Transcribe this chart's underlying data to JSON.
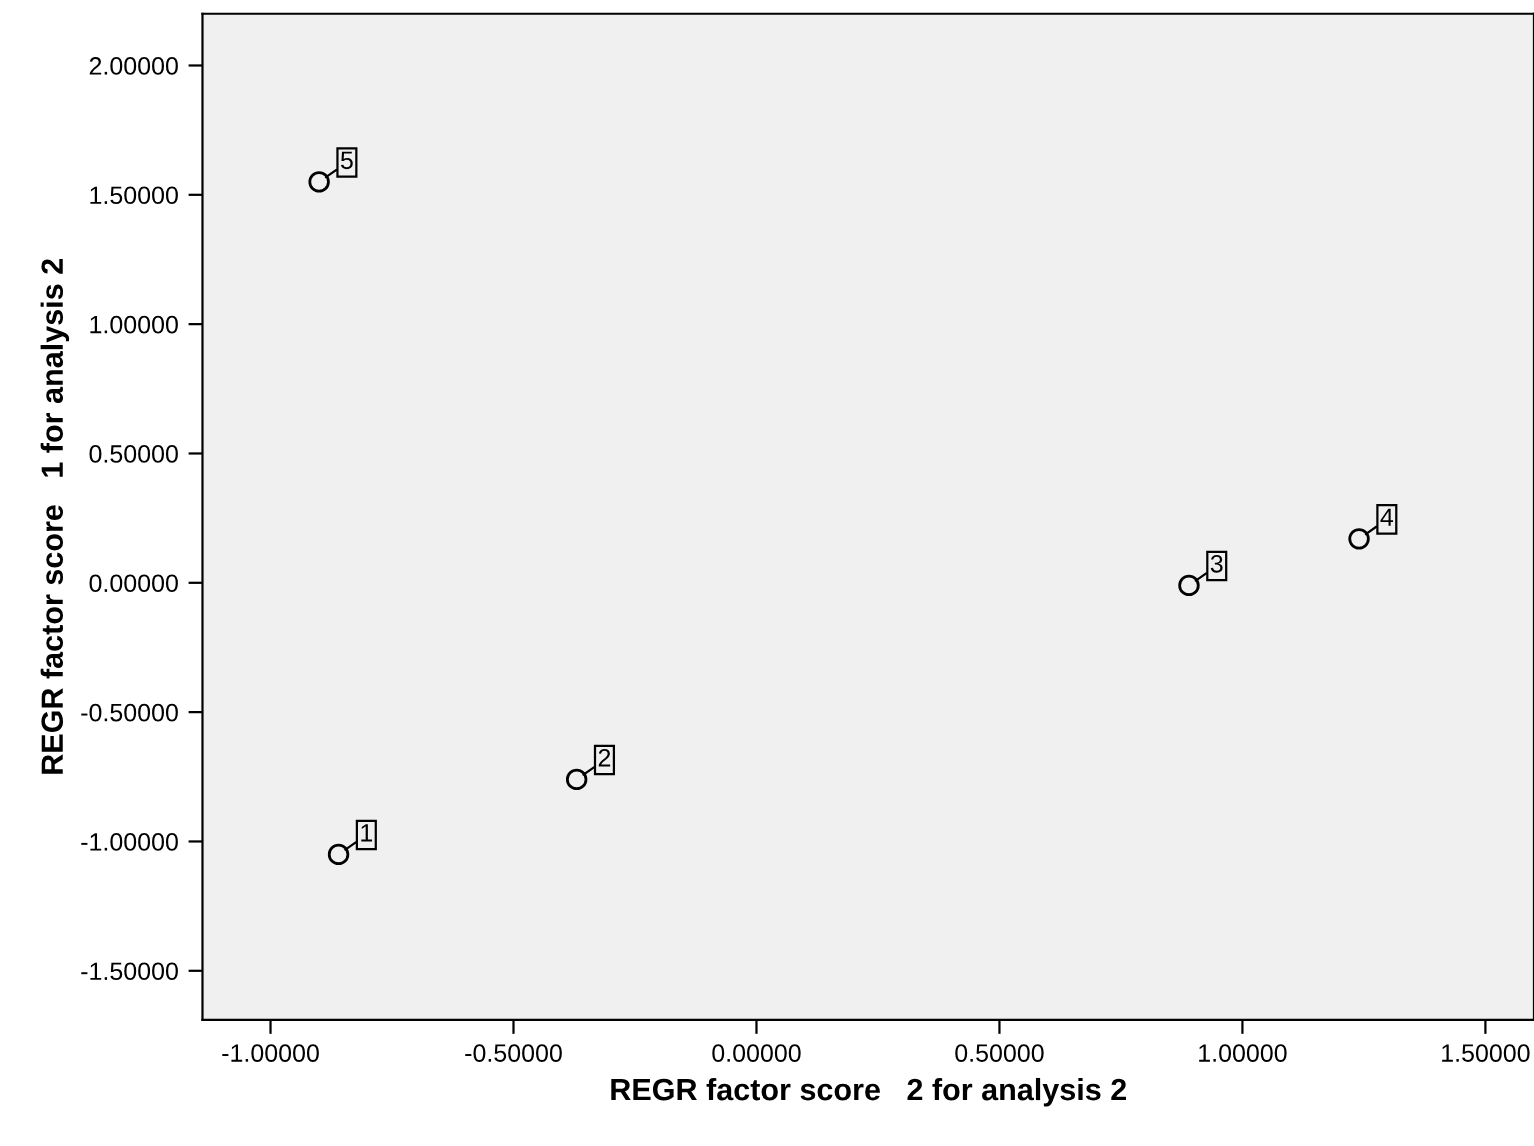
{
  "chart_data": {
    "type": "scatter",
    "xlabel": "REGR factor score   2 for analysis 2",
    "ylabel": "REGR factor score   1 for analysis 2",
    "x": [
      -0.86,
      -0.37,
      0.89,
      1.24,
      -0.9
    ],
    "series": [
      {
        "color": "#000000",
        "values": [
          -1.05,
          -0.76,
          -0.01,
          0.17,
          1.55
        ]
      }
    ],
    "annotations": [
      {
        "text": "1",
        "x": -0.86,
        "y": -1.05
      },
      {
        "text": "2",
        "x": -0.37,
        "y": -0.76
      },
      {
        "text": "3",
        "x": 0.89,
        "y": -0.01
      },
      {
        "text": "4",
        "x": 1.24,
        "y": 0.17
      },
      {
        "text": "5",
        "x": -0.9,
        "y": 1.55
      }
    ],
    "xlim": [
      -1.14,
      1.6
    ],
    "xticks": [
      {
        "value": -1.0,
        "label": "-1.00000"
      },
      {
        "value": -0.5,
        "label": "-0.50000"
      },
      {
        "value": 0,
        "label": "0.00000"
      },
      {
        "value": 0.5,
        "label": "0.50000"
      },
      {
        "value": 1.0,
        "label": "1.00000"
      },
      {
        "value": 1.5,
        "label": "1.50000"
      }
    ],
    "ylim": [
      -1.69,
      2.2
    ],
    "yticks": [
      {
        "value": -1.5,
        "label": "-1.50000"
      },
      {
        "value": -1.0,
        "label": "-1.00000"
      },
      {
        "value": -0.5,
        "label": "-0.50000"
      },
      {
        "value": 0,
        "label": "0.00000"
      },
      {
        "value": 0.5,
        "label": "0.50000"
      },
      {
        "value": 1.0,
        "label": "1.00000"
      },
      {
        "value": 1.5,
        "label": "1.50000"
      },
      {
        "value": 2.0,
        "label": "2.00000"
      }
    ],
    "marker": "circle",
    "grid": false,
    "legend": false
  }
}
